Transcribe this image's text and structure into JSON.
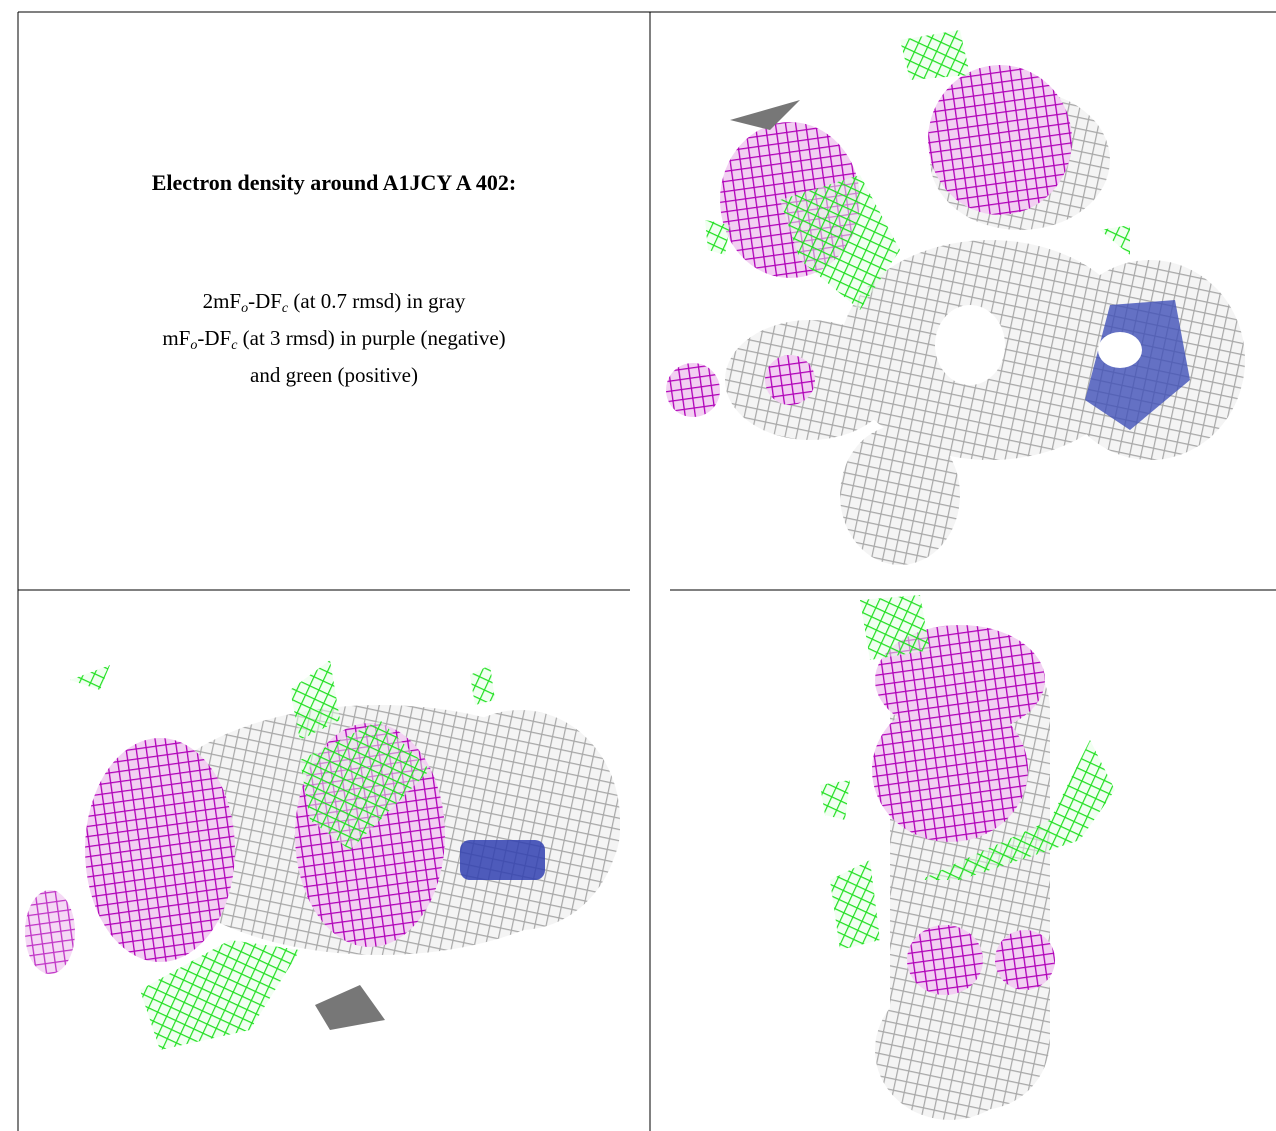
{
  "caption": {
    "title": "Electron density around A1JCY A 402:",
    "lines": [
      [
        "2mF",
        "o",
        "-DF",
        "c",
        " (at 0.7 rmsd) in gray"
      ],
      [
        "mF",
        "o",
        "-DF",
        "c",
        " (at 3 rmsd) in purple (negative)"
      ],
      [
        "and green (positive)"
      ]
    ]
  }
}
